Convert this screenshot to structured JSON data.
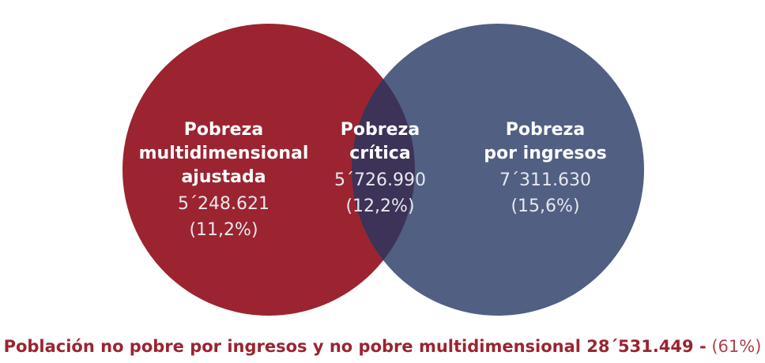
{
  "regions": [
    {
      "name": "left",
      "label_lines": [
        "Pobreza",
        "multidimensional",
        "ajustada"
      ],
      "count": "5´248.621",
      "percent": "(11,2%)"
    },
    {
      "name": "center",
      "label_lines": [
        "Pobreza",
        "crítica"
      ],
      "count": "5´726.990",
      "percent": "(12,2%)"
    },
    {
      "name": "right",
      "label_lines": [
        "Pobreza",
        "por ingresos"
      ],
      "count": "7´311.630",
      "percent": "(15,6%)"
    }
  ],
  "footer": {
    "text": "Población no pobre por ingresos y no pobre multidimensional 28´531.449 -",
    "percent": "(61%)"
  }
}
